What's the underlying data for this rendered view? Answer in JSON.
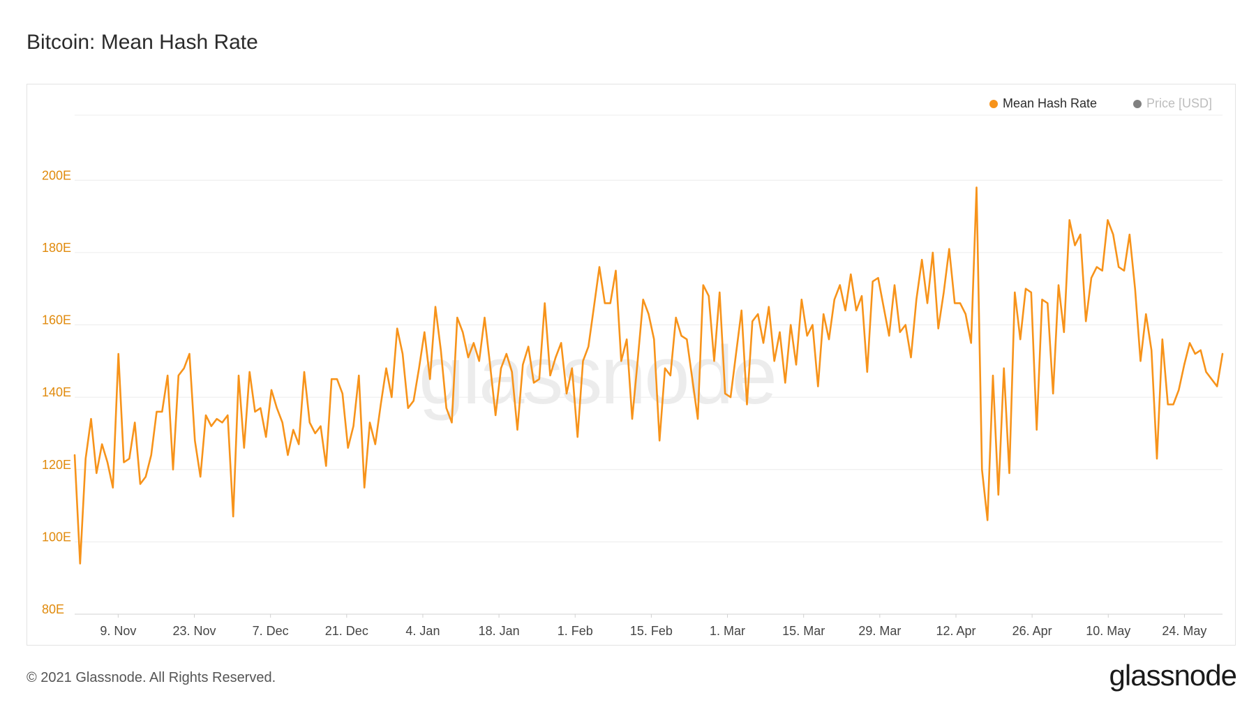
{
  "header": {
    "title": "Bitcoin: Mean Hash Rate"
  },
  "legend": {
    "items": [
      {
        "label": "Mean Hash Rate",
        "color": "#f7931a",
        "active": true
      },
      {
        "label": "Price [USD]",
        "color": "#808080",
        "active": false
      }
    ]
  },
  "watermark": "glassnode",
  "footer": {
    "copyright": "© 2021 Glassnode. All Rights Reserved.",
    "brand": "glassnode"
  },
  "chart_data": {
    "type": "line",
    "title": "Bitcoin: Mean Hash Rate",
    "xlabel": "",
    "ylabel": "",
    "grid": true,
    "legend_position": "top-right",
    "x_start": "2020-11-01",
    "x_end": "2021-05-31",
    "x_ticks": [
      "9. Nov",
      "23. Nov",
      "7. Dec",
      "21. Dec",
      "4. Jan",
      "18. Jan",
      "1. Feb",
      "15. Feb",
      "1. Mar",
      "15. Mar",
      "29. Mar",
      "12. Apr",
      "26. Apr",
      "10. May",
      "24. May"
    ],
    "y_ticks": [
      80,
      100,
      120,
      140,
      160,
      180,
      200
    ],
    "y_tick_labels": [
      "80E",
      "100E",
      "120E",
      "140E",
      "160E",
      "180E",
      "200E"
    ],
    "ylim": [
      80,
      218
    ],
    "series": [
      {
        "name": "Mean Hash Rate",
        "color": "#f7931a",
        "values": [
          124,
          94,
          123,
          134,
          119,
          127,
          122,
          115,
          152,
          122,
          123,
          133,
          116,
          118,
          124,
          136,
          136,
          146,
          120,
          146,
          148,
          152,
          128,
          118,
          135,
          132,
          134,
          133,
          135,
          107,
          146,
          126,
          147,
          136,
          137,
          129,
          142,
          137,
          133,
          124,
          131,
          127,
          147,
          133,
          130,
          132,
          121,
          145,
          145,
          141,
          126,
          132,
          146,
          115,
          133,
          127,
          138,
          148,
          140,
          159,
          152,
          137,
          139,
          148,
          158,
          145,
          165,
          153,
          137,
          133,
          162,
          158,
          151,
          155,
          150,
          162,
          149,
          135,
          148,
          152,
          147,
          131,
          149,
          154,
          144,
          145,
          166,
          146,
          151,
          155,
          141,
          148,
          129,
          150,
          154,
          165,
          176,
          166,
          166,
          175,
          150,
          156,
          134,
          150,
          167,
          163,
          156,
          128,
          148,
          146,
          162,
          157,
          156,
          145,
          134,
          171,
          168,
          150,
          169,
          141,
          140,
          152,
          164,
          138,
          161,
          163,
          155,
          165,
          150,
          158,
          144,
          160,
          149,
          167,
          157,
          160,
          143,
          163,
          156,
          167,
          171,
          164,
          174,
          164,
          168,
          147,
          172,
          173,
          165,
          157,
          171,
          158,
          160,
          151,
          167,
          178,
          166,
          180,
          159,
          169,
          181,
          166,
          166,
          163,
          155,
          198,
          120,
          106,
          146,
          113,
          148,
          119,
          169,
          156,
          170,
          169,
          131,
          167,
          166,
          141,
          171,
          158,
          189,
          182,
          185,
          161,
          173,
          176,
          175,
          189,
          185,
          176,
          175,
          185,
          170,
          150,
          163,
          153,
          123,
          156,
          138,
          138,
          142,
          149,
          155,
          152,
          153,
          147,
          145,
          143,
          152
        ]
      }
    ]
  }
}
